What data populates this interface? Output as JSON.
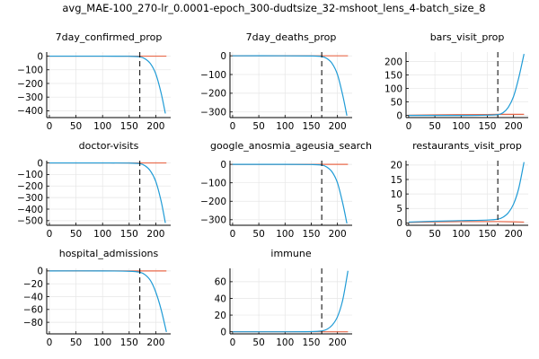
{
  "figure_title": "avg_MAE-100_270-lr_0.0001-epoch_300-dudtsize_32-mshoot_lens_4-batch_size_8",
  "colors": {
    "prediction": "#1f9bd6",
    "truth": "#e8694a",
    "vline": "#000000",
    "grid": "#e6e6e6",
    "axis": "#000000"
  },
  "chart_data": [
    {
      "type": "line",
      "title": "7day_confirmed_prop",
      "xlim": [
        -5,
        228
      ],
      "ylim": [
        -450,
        30
      ],
      "xticks": [
        0,
        50,
        100,
        150,
        200
      ],
      "yticks": [
        0,
        -100,
        -200,
        -300,
        -400
      ],
      "vline_x": 170,
      "series": [
        {
          "role": "truth",
          "x": [
            0,
            220
          ],
          "y": [
            0,
            0
          ]
        },
        {
          "role": "prediction",
          "x": [
            0,
            100,
            150,
            170,
            180,
            190,
            200,
            210,
            218
          ],
          "y": [
            0,
            0,
            -1,
            -5,
            -20,
            -55,
            -130,
            -270,
            -420
          ]
        }
      ]
    },
    {
      "type": "line",
      "title": "7day_deaths_prop",
      "xlim": [
        -5,
        228
      ],
      "ylim": [
        -330,
        20
      ],
      "xticks": [
        0,
        50,
        100,
        150,
        200
      ],
      "yticks": [
        0,
        -100,
        -200,
        -300
      ],
      "vline_x": 170,
      "series": [
        {
          "role": "truth",
          "x": [
            0,
            220
          ],
          "y": [
            0,
            0
          ]
        },
        {
          "role": "prediction",
          "x": [
            0,
            100,
            150,
            170,
            180,
            190,
            200,
            210,
            218
          ],
          "y": [
            0,
            0,
            -1,
            -4,
            -15,
            -42,
            -100,
            -210,
            -320
          ]
        }
      ]
    },
    {
      "type": "line",
      "title": "bars_visit_prop",
      "xlim": [
        -5,
        228
      ],
      "ylim": [
        -8,
        235
      ],
      "xticks": [
        0,
        50,
        100,
        150,
        200
      ],
      "yticks": [
        0,
        50,
        100,
        150,
        200
      ],
      "vline_x": 170,
      "series": [
        {
          "role": "truth",
          "x": [
            0,
            50,
            100,
            150,
            170,
            200,
            220
          ],
          "y": [
            1,
            2,
            3,
            3.5,
            4,
            4,
            4
          ]
        },
        {
          "role": "prediction",
          "x": [
            0,
            100,
            150,
            170,
            180,
            190,
            200,
            210,
            220
          ],
          "y": [
            0,
            0,
            1,
            3,
            10,
            30,
            70,
            140,
            228
          ]
        }
      ]
    },
    {
      "type": "line",
      "title": "doctor-visits",
      "xlim": [
        -5,
        228
      ],
      "ylim": [
        -540,
        20
      ],
      "xticks": [
        0,
        50,
        100,
        150,
        200
      ],
      "yticks": [
        0,
        -100,
        -200,
        -300,
        -400,
        -500
      ],
      "vline_x": 170,
      "series": [
        {
          "role": "truth",
          "x": [
            0,
            220
          ],
          "y": [
            0,
            0
          ]
        },
        {
          "role": "prediction",
          "x": [
            0,
            100,
            150,
            170,
            180,
            190,
            200,
            210,
            218
          ],
          "y": [
            0,
            0,
            -1,
            -6,
            -25,
            -70,
            -160,
            -330,
            -520
          ]
        }
      ]
    },
    {
      "type": "line",
      "title": "google_anosmia_ageusia_search",
      "xlim": [
        -5,
        228
      ],
      "ylim": [
        -330,
        20
      ],
      "xticks": [
        0,
        50,
        100,
        150,
        200
      ],
      "yticks": [
        0,
        -100,
        -200,
        -300
      ],
      "vline_x": 170,
      "series": [
        {
          "role": "truth",
          "x": [
            0,
            220
          ],
          "y": [
            0,
            0
          ]
        },
        {
          "role": "prediction",
          "x": [
            0,
            100,
            150,
            170,
            180,
            190,
            200,
            210,
            218
          ],
          "y": [
            0,
            0,
            -1,
            -4,
            -15,
            -42,
            -100,
            -210,
            -320
          ]
        }
      ]
    },
    {
      "type": "line",
      "title": "restaurants_visit_prop",
      "xlim": [
        -5,
        228
      ],
      "ylim": [
        -0.8,
        21.5
      ],
      "xticks": [
        0,
        50,
        100,
        150,
        200
      ],
      "yticks": [
        0,
        5,
        10,
        15,
        20
      ],
      "vline_x": 170,
      "series": [
        {
          "role": "truth",
          "x": [
            0,
            50,
            100,
            150,
            170,
            200,
            220
          ],
          "y": [
            0.2,
            0.4,
            0.5,
            0.5,
            0.5,
            0.4,
            0.3
          ]
        },
        {
          "role": "prediction",
          "x": [
            0,
            50,
            100,
            150,
            170,
            180,
            190,
            200,
            210,
            220
          ],
          "y": [
            0.3,
            0.6,
            0.8,
            1.0,
            1.3,
            2,
            3.5,
            6.5,
            12,
            21
          ]
        }
      ]
    },
    {
      "type": "line",
      "title": "hospital_admissions",
      "xlim": [
        -5,
        228
      ],
      "ylim": [
        -98,
        4
      ],
      "xticks": [
        0,
        50,
        100,
        150,
        200
      ],
      "yticks": [
        0,
        -20,
        -40,
        -60,
        -80
      ],
      "vline_x": 170,
      "series": [
        {
          "role": "truth",
          "x": [
            0,
            220
          ],
          "y": [
            0,
            0
          ]
        },
        {
          "role": "prediction",
          "x": [
            0,
            100,
            150,
            170,
            180,
            190,
            200,
            210,
            220
          ],
          "y": [
            0,
            0,
            -0.5,
            -2,
            -6,
            -15,
            -33,
            -60,
            -95
          ]
        }
      ]
    },
    {
      "type": "line",
      "title": "immune",
      "xlim": [
        -5,
        228
      ],
      "ylim": [
        -2.5,
        76
      ],
      "xticks": [
        0,
        50,
        100,
        150,
        200
      ],
      "yticks": [
        0,
        20,
        40,
        60
      ],
      "vline_x": 170,
      "series": [
        {
          "role": "truth",
          "x": [
            0,
            220
          ],
          "y": [
            0,
            0
          ]
        },
        {
          "role": "prediction",
          "x": [
            0,
            100,
            150,
            170,
            180,
            190,
            200,
            210,
            220
          ],
          "y": [
            0,
            0,
            0.2,
            1,
            3,
            8,
            18,
            38,
            73
          ]
        }
      ]
    }
  ]
}
